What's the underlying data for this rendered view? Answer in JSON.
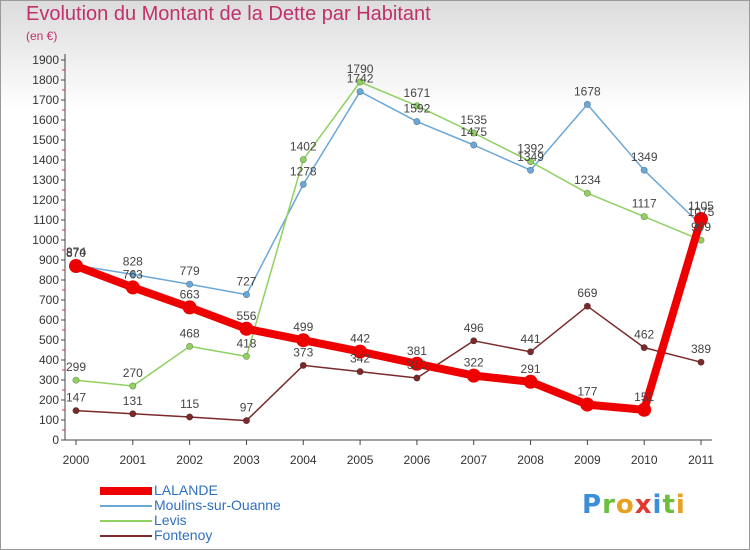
{
  "title": "Evolution du Montant de la Dette par Habitant",
  "unit": "(en €)",
  "brand": {
    "letters": [
      {
        "ch": "P",
        "color": "#3a8fd8"
      },
      {
        "ch": "r",
        "color": "#6cbf3c"
      },
      {
        "ch": "o",
        "color": "#e8a020"
      },
      {
        "ch": "x",
        "color": "#e03a30"
      },
      {
        "ch": "i",
        "color": "#3a8fd8"
      },
      {
        "ch": "t",
        "color": "#6cbf3c"
      },
      {
        "ch": "i",
        "color": "#e8a020"
      }
    ]
  },
  "chart_data": {
    "type": "line",
    "title": "Evolution du Montant de la Dette par Habitant",
    "ylabel": "(en €)",
    "x": [
      "2000",
      "2001",
      "2002",
      "2003",
      "2004",
      "2005",
      "2006",
      "2007",
      "2008",
      "2009",
      "2010",
      "2011"
    ],
    "ylim": [
      0,
      1900
    ],
    "yticks": [
      0,
      100,
      200,
      300,
      400,
      500,
      600,
      700,
      800,
      900,
      1000,
      1100,
      1200,
      1300,
      1400,
      1500,
      1600,
      1700,
      1800,
      1900
    ],
    "grid": false,
    "legend": "bottom-left",
    "series": [
      {
        "name": "LALANDE",
        "color": "#ee0000",
        "highlight": true,
        "values": [
          870,
          763,
          663,
          556,
          499,
          442,
          381,
          322,
          291,
          177,
          151,
          1105
        ]
      },
      {
        "name": "Moulins-sur-Ouanne",
        "color": "#6aa8d8",
        "values": [
          874,
          828,
          779,
          727,
          1278,
          1742,
          1592,
          1475,
          1349,
          1678,
          1349,
          1075
        ]
      },
      {
        "name": "Levis",
        "color": "#90d060",
        "values": [
          299,
          270,
          468,
          418,
          1402,
          1790,
          1671,
          1535,
          1392,
          1234,
          1117,
          999
        ]
      },
      {
        "name": "Fontenoy",
        "color": "#7a2a2a",
        "values": [
          147,
          131,
          115,
          97,
          373,
          342,
          310,
          496,
          441,
          669,
          462,
          389
        ]
      }
    ]
  }
}
